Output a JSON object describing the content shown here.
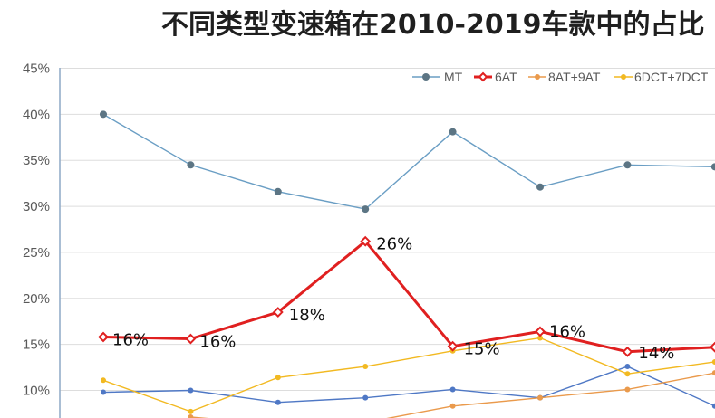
{
  "chart_data": {
    "type": "line",
    "title": "不同类型变速箱在2010-2019车款中的占比",
    "xlabel": "",
    "ylabel": "",
    "ylim": [
      7,
      45
    ],
    "yticks": [
      "10%",
      "15%",
      "20%",
      "25%",
      "30%",
      "35%",
      "40%",
      "45%"
    ],
    "grid": true,
    "legend_position": "top-right",
    "points_per_series": 8,
    "series": [
      {
        "name": "MT",
        "color": "#6a9ec4",
        "marker_color": "#5c7584",
        "line_width": 1.4,
        "values": [
          40.0,
          34.5,
          31.6,
          29.7,
          38.1,
          32.1,
          34.5,
          34.3
        ]
      },
      {
        "name": "6AT",
        "color": "#e02020",
        "marker_color": "#e02020",
        "line_width": 3,
        "values": [
          15.8,
          15.6,
          18.5,
          26.2,
          14.8,
          16.4,
          14.2,
          14.7
        ]
      },
      {
        "name": "8AT+9AT",
        "color": "#ea9a4c",
        "marker_color": "#ea9a4c",
        "line_width": 1.4,
        "values": [
          null,
          7.1,
          6.3,
          6.5,
          8.3,
          9.2,
          10.1,
          11.9
        ]
      },
      {
        "name": "6DCT+7DCT",
        "color": "#f2b921",
        "marker_color": "#f2b921",
        "line_width": 1.4,
        "values": [
          11.1,
          7.7,
          11.4,
          12.6,
          14.3,
          15.7,
          11.8,
          13.1
        ]
      },
      {
        "name": "",
        "color": "#4f78c5",
        "marker_color": "#4f78c5",
        "line_width": 1.4,
        "values": [
          9.8,
          10.0,
          8.7,
          9.2,
          10.1,
          9.2,
          12.6,
          8.3
        ]
      }
    ],
    "annotations": [
      {
        "series": 1,
        "index": 0,
        "text": "16%"
      },
      {
        "series": 1,
        "index": 1,
        "text": "16%"
      },
      {
        "series": 1,
        "index": 2,
        "text": "18%"
      },
      {
        "series": 1,
        "index": 3,
        "text": "26%"
      },
      {
        "series": 1,
        "index": 4,
        "text": "15%"
      },
      {
        "series": 1,
        "index": 5,
        "text": "16%"
      },
      {
        "series": 1,
        "index": 6,
        "text": "14%"
      }
    ]
  }
}
